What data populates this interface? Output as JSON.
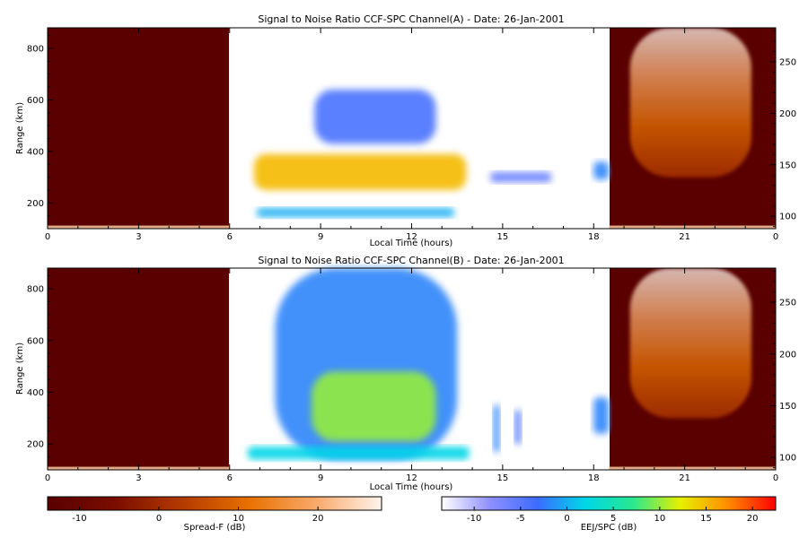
{
  "chart_data": [
    {
      "type": "heatmap",
      "title": "Signal to Noise Ratio CCF-SPC Channel(A) - Date: 26-Jan-2001",
      "xlabel": "Local Time (hours)",
      "ylabel": "Range (km)",
      "x_ticks": [
        "0",
        "3",
        "6",
        "9",
        "12",
        "15",
        "18",
        "21",
        "0"
      ],
      "xlim": [
        0,
        24
      ],
      "ylim": [
        100,
        880
      ],
      "y_ticks": [
        200,
        400,
        600,
        800
      ],
      "y_right_ticks": [
        100,
        150,
        200,
        250
      ],
      "y_right_lim": [
        88,
        283
      ],
      "panels": [
        {
          "name": "Spread-F",
          "x_range": [
            0,
            6
          ],
          "colormap": "dark red to white"
        },
        {
          "name": "EEJ/SPC",
          "x_range": [
            6,
            18.5
          ],
          "colormap": "white-blue-cyan-green-yellow-red",
          "features": [
            {
              "x_range": [
                6.8,
                13.8
              ],
              "range_km": [
                250,
                390
              ],
              "peak_db": 15
            },
            {
              "x_range": [
                8.8,
                12.8
              ],
              "range_km": [
                430,
                640
              ],
              "peak_db": -4
            },
            {
              "x_range": [
                6.9,
                13.4
              ],
              "range_km": [
                145,
                180
              ],
              "peak_db": 0
            },
            {
              "x_range": [
                14.6,
                16.6
              ],
              "range_km": [
                280,
                320
              ],
              "peak_db": -6
            },
            {
              "x_range": [
                18.0,
                18.5
              ],
              "range_km": [
                290,
                360
              ],
              "peak_db": -2
            }
          ]
        },
        {
          "name": "Spread-F",
          "x_range": [
            18.5,
            24
          ],
          "colormap": "dark red to white",
          "features": [
            {
              "x_range": [
                19.2,
                23.2
              ],
              "range_km": [
                300,
                880
              ],
              "peak_db": 20
            }
          ]
        }
      ]
    },
    {
      "type": "heatmap",
      "title": "Signal to Noise Ratio CCF-SPC Channel(B) - Date: 26-Jan-2001",
      "xlabel": "Local Time (hours)",
      "ylabel": "Range (km)",
      "x_ticks": [
        "0",
        "3",
        "6",
        "9",
        "12",
        "15",
        "18",
        "21",
        "0"
      ],
      "xlim": [
        0,
        24
      ],
      "ylim": [
        100,
        880
      ],
      "y_ticks": [
        200,
        400,
        600,
        800
      ],
      "y_right_ticks": [
        100,
        150,
        200,
        250
      ],
      "y_right_lim": [
        88,
        283
      ],
      "panels": [
        {
          "name": "Spread-F",
          "x_range": [
            0,
            6
          ],
          "colormap": "dark red to white"
        },
        {
          "name": "EEJ/SPC",
          "x_range": [
            6,
            18.5
          ],
          "colormap": "white-blue-cyan-green-yellow-red",
          "features": [
            {
              "x_range": [
                7.5,
                13.5
              ],
              "range_km": [
                140,
                880
              ],
              "peak_db": -2
            },
            {
              "x_range": [
                8.7,
                12.8
              ],
              "range_km": [
                210,
                480
              ],
              "peak_db": 10
            },
            {
              "x_range": [
                6.6,
                13.9
              ],
              "range_km": [
                140,
                190
              ],
              "peak_db": 2
            },
            {
              "x_range": [
                14.7,
                14.9
              ],
              "range_km": [
                170,
                350
              ],
              "peak_db": -2
            },
            {
              "x_range": [
                15.4,
                15.6
              ],
              "range_km": [
                200,
                330
              ],
              "peak_db": -4
            },
            {
              "x_range": [
                18.0,
                18.5
              ],
              "range_km": [
                240,
                380
              ],
              "peak_db": -2
            }
          ]
        },
        {
          "name": "Spread-F",
          "x_range": [
            18.5,
            24
          ],
          "colormap": "dark red to white",
          "features": [
            {
              "x_range": [
                19.2,
                23.2
              ],
              "range_km": [
                300,
                880
              ],
              "peak_db": 20
            }
          ]
        }
      ]
    }
  ],
  "colorbars": [
    {
      "label": "Spread-F (dB)",
      "ticks": [
        "-10",
        "0",
        "10",
        "20"
      ],
      "range": [
        -14,
        28
      ],
      "colors": [
        "#5a0000",
        "#7a0d00",
        "#b33a00",
        "#e87000",
        "#f8a868",
        "#fff4ec"
      ]
    },
    {
      "label": "EEJ/SPC (dB)",
      "ticks": [
        "-10",
        "-5",
        "0",
        "5",
        "10",
        "15",
        "20"
      ],
      "range": [
        -13.5,
        22.5
      ],
      "colors": [
        "#ffffff",
        "#9090ff",
        "#3c6cff",
        "#00d6e8",
        "#28e890",
        "#e6f000",
        "#ff8c00",
        "#ff0000"
      ]
    }
  ]
}
